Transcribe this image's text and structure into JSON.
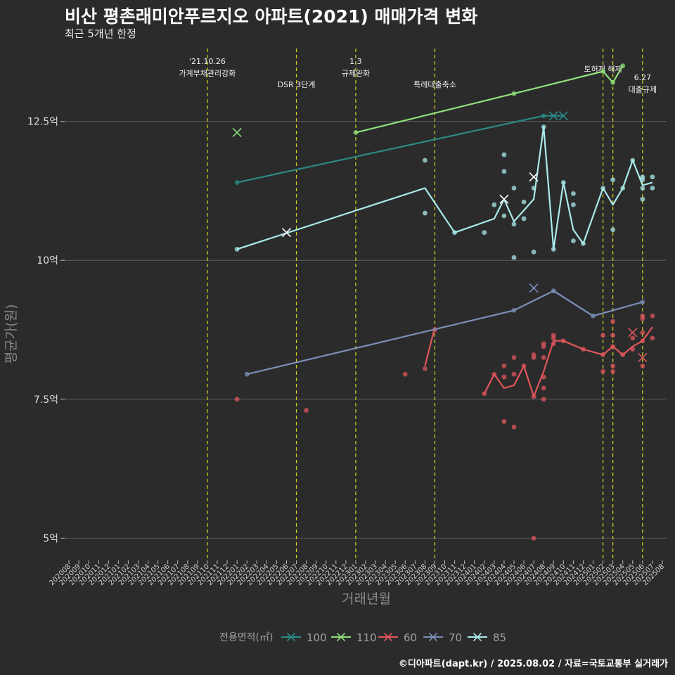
{
  "header": {
    "title": "비산 평촌래미안푸르지오 아파트(2021) 매매가격 변화",
    "subtitle": "최근 5개년 한정"
  },
  "caption": "©디아파트(dapt.kr) / 2025.08.02 / 자료=국토교통부 실거래가",
  "colors": {
    "background": "#2b2b2c",
    "gridline": "#5c5c5c",
    "event_line": "#d6d61e"
  },
  "chart_data": {
    "type": "line",
    "xlabel": "거래년월",
    "ylabel": "평균가(원)",
    "x_categories": [
      "202008",
      "202009",
      "202010",
      "202011",
      "202012",
      "202101",
      "202102",
      "202103",
      "202104",
      "202105",
      "202106",
      "202107",
      "202108",
      "202109",
      "202110",
      "202111",
      "202112",
      "202201",
      "202202",
      "202203",
      "202204",
      "202205",
      "202206",
      "202207",
      "202208",
      "202209",
      "202210",
      "202211",
      "202212",
      "202301",
      "202302",
      "202303",
      "202304",
      "202305",
      "202306",
      "202307",
      "202308",
      "202309",
      "202310",
      "202311",
      "202312",
      "202401",
      "202402",
      "202403",
      "202404",
      "202405",
      "202406",
      "202407",
      "202408",
      "202409",
      "202410",
      "202411",
      "202412",
      "202501",
      "202502",
      "202503",
      "202504",
      "202505",
      "202506",
      "202507",
      "202508"
    ],
    "y_ticks": [
      {
        "value": 5.0,
        "label": "5억"
      },
      {
        "value": 7.5,
        "label": "7.5억"
      },
      {
        "value": 10.0,
        "label": "10억"
      },
      {
        "value": 12.5,
        "label": "12.5억"
      }
    ],
    "ylim": [
      4.6,
      13.9
    ],
    "grid": true,
    "legend_title": "전용면적(㎡)",
    "legend_position": "bottom",
    "events": [
      {
        "date": "202110",
        "text": [
          "'21.10.26",
          "가계부채관리강화"
        ]
      },
      {
        "date": "202207",
        "text": [
          "DSR 3단계"
        ]
      },
      {
        "date": "202301",
        "text": [
          "1.3",
          "규제완화"
        ]
      },
      {
        "date": "202309",
        "text": [
          "특례대출축소"
        ]
      },
      {
        "date": "202502",
        "text": [
          "토허제 해제"
        ]
      },
      {
        "date": "202503",
        "text": [
          ""
        ]
      },
      {
        "date": "202506",
        "text": [
          "6.27",
          "대출규제"
        ]
      }
    ],
    "series": [
      {
        "name": "100",
        "color": "#2a8a86",
        "line": [
          [
            "202201",
            11.4
          ],
          [
            "202408",
            12.6
          ],
          [
            "202409",
            12.6
          ],
          [
            "202410",
            12.6
          ]
        ],
        "points": [
          [
            "202201",
            11.4
          ],
          [
            "202408",
            12.6
          ]
        ],
        "crosses": [
          [
            "202409",
            12.6
          ],
          [
            "202410",
            12.6
          ]
        ]
      },
      {
        "name": "110",
        "color": "#8fe07a",
        "line": [
          [
            "202301",
            12.3
          ],
          [
            "202405",
            13.0
          ],
          [
            "202502",
            13.4
          ],
          [
            "202503",
            13.2
          ],
          [
            "202504",
            13.5
          ]
        ],
        "points": [
          [
            "202301",
            12.3
          ],
          [
            "202405",
            13.0
          ],
          [
            "202502",
            13.4
          ],
          [
            "202503",
            13.2
          ],
          [
            "202504",
            13.5
          ]
        ],
        "crosses": [
          [
            "202201",
            12.3
          ]
        ]
      },
      {
        "name": "60",
        "color": "#e0565b",
        "line_segments": [
          [
            [
              "202308",
              8.1
            ],
            [
              "202309",
              8.8
            ]
          ],
          [
            [
              "202402",
              7.6
            ],
            [
              "202403",
              7.95
            ],
            [
              "202404",
              7.7
            ],
            [
              "202405",
              7.75
            ],
            [
              "202406",
              8.1
            ],
            [
              "202407",
              7.55
            ],
            [
              "202408",
              8.0
            ],
            [
              "202409",
              8.55
            ],
            [
              "202410",
              8.55
            ],
            [
              "202412",
              8.4
            ],
            [
              "202502",
              8.3
            ],
            [
              "202503",
              8.45
            ],
            [
              "202504",
              8.3
            ],
            [
              "202505",
              8.45
            ],
            [
              "202506",
              8.55
            ],
            [
              "202507",
              8.8
            ]
          ]
        ],
        "points": [
          [
            "202208",
            7.3
          ],
          [
            "202201",
            7.5
          ],
          [
            "202306",
            7.95
          ],
          [
            "202308",
            8.05
          ],
          [
            "202309",
            8.75
          ],
          [
            "202402",
            7.6
          ],
          [
            "202403",
            7.95
          ],
          [
            "202404",
            7.9
          ],
          [
            "202404",
            8.1
          ],
          [
            "202404",
            7.1
          ],
          [
            "202405",
            8.25
          ],
          [
            "202405",
            7.0
          ],
          [
            "202405",
            7.95
          ],
          [
            "202406",
            8.1
          ],
          [
            "202407",
            8.3
          ],
          [
            "202407",
            8.25
          ],
          [
            "202407",
            7.55
          ],
          [
            "202407",
            5.0
          ],
          [
            "202408",
            7.5
          ],
          [
            "202408",
            7.9
          ],
          [
            "202408",
            7.7
          ],
          [
            "202408",
            8.45
          ],
          [
            "202408",
            8.5
          ],
          [
            "202408",
            8.25
          ],
          [
            "202409",
            8.6
          ],
          [
            "202409",
            8.65
          ],
          [
            "202409",
            8.5
          ],
          [
            "202410",
            8.55
          ],
          [
            "202412",
            8.4
          ],
          [
            "202502",
            8.0
          ],
          [
            "202502",
            8.3
          ],
          [
            "202502",
            8.65
          ],
          [
            "202503",
            8.9
          ],
          [
            "202503",
            8.45
          ],
          [
            "202503",
            8.65
          ],
          [
            "202503",
            8.1
          ],
          [
            "202503",
            8.0
          ],
          [
            "202504",
            8.3
          ],
          [
            "202505",
            8.4
          ],
          [
            "202505",
            8.6
          ],
          [
            "202506",
            8.55
          ],
          [
            "202506",
            8.95
          ],
          [
            "202506",
            9.0
          ],
          [
            "202506",
            8.1
          ],
          [
            "202506",
            8.7
          ],
          [
            "202507",
            8.6
          ],
          [
            "202507",
            9.0
          ]
        ],
        "crosses": [
          [
            "202505",
            8.7
          ],
          [
            "202506",
            8.25
          ]
        ]
      },
      {
        "name": "70",
        "color": "#7b8fb8",
        "line": [
          [
            "202202",
            7.95
          ],
          [
            "202405",
            9.1
          ],
          [
            "202409",
            9.45
          ],
          [
            "202501",
            9.0
          ],
          [
            "202506",
            9.25
          ]
        ],
        "points": [
          [
            "202202",
            7.95
          ],
          [
            "202405",
            9.1
          ],
          [
            "202409",
            9.45
          ],
          [
            "202501",
            9.0
          ],
          [
            "202506",
            9.25
          ]
        ],
        "crosses": [
          [
            "202407",
            9.5
          ]
        ]
      },
      {
        "name": "85",
        "color": "#aaeaea",
        "line": [
          [
            "202201",
            10.2
          ],
          [
            "202308",
            11.3
          ],
          [
            "202311",
            10.5
          ],
          [
            "202403",
            10.75
          ],
          [
            "202404",
            11.1
          ],
          [
            "202405",
            10.7
          ],
          [
            "202406",
            10.9
          ],
          [
            "202407",
            11.1
          ],
          [
            "202408",
            12.4
          ],
          [
            "202409",
            10.2
          ],
          [
            "202410",
            11.4
          ],
          [
            "202411",
            10.55
          ],
          [
            "202412",
            10.3
          ],
          [
            "202502",
            11.3
          ],
          [
            "202503",
            11.0
          ],
          [
            "202504",
            11.3
          ],
          [
            "202505",
            11.8
          ],
          [
            "202506",
            11.35
          ],
          [
            "202507",
            11.4
          ]
        ],
        "points": [
          [
            "202201",
            10.2
          ],
          [
            "202308",
            11.8
          ],
          [
            "202308",
            10.85
          ],
          [
            "202311",
            10.5
          ],
          [
            "202402",
            10.5
          ],
          [
            "202403",
            11.0
          ],
          [
            "202404",
            11.9
          ],
          [
            "202404",
            11.6
          ],
          [
            "202404",
            10.8
          ],
          [
            "202405",
            11.3
          ],
          [
            "202405",
            10.65
          ],
          [
            "202405",
            10.05
          ],
          [
            "202406",
            11.05
          ],
          [
            "202406",
            10.75
          ],
          [
            "202407",
            11.3
          ],
          [
            "202407",
            10.15
          ],
          [
            "202408",
            12.4
          ],
          [
            "202409",
            10.2
          ],
          [
            "202410",
            11.4
          ],
          [
            "202411",
            11.2
          ],
          [
            "202411",
            11.0
          ],
          [
            "202411",
            10.35
          ],
          [
            "202412",
            10.3
          ],
          [
            "202502",
            11.3
          ],
          [
            "202503",
            11.45
          ],
          [
            "202503",
            10.55
          ],
          [
            "202504",
            11.3
          ],
          [
            "202505",
            11.8
          ],
          [
            "202506",
            11.1
          ],
          [
            "202506",
            11.45
          ],
          [
            "202506",
            11.5
          ],
          [
            "202506",
            11.3
          ],
          [
            "202507",
            11.5
          ],
          [
            "202507",
            11.3
          ]
        ],
        "crosses": [
          [
            "202206",
            10.5
          ],
          [
            "202404",
            11.1
          ],
          [
            "202407",
            11.5
          ]
        ]
      }
    ]
  }
}
